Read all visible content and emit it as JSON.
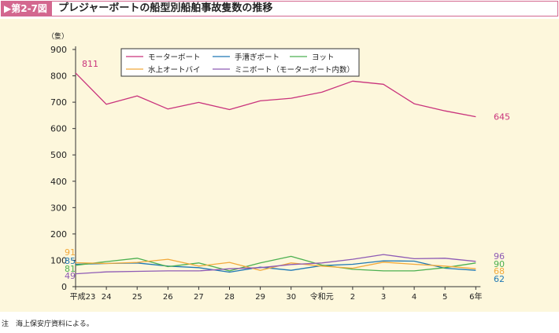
{
  "header": {
    "figure_label": "▶第2-7図",
    "title": "プレジャーボートの船型別船舶事故隻数の推移"
  },
  "note": "注　海上保安庁資料による。",
  "chart_data": {
    "type": "line",
    "title": "プレジャーボートの船型別船舶事故隻数の推移",
    "ylabel": "（隻）",
    "xlabel": "",
    "ylim": [
      0,
      900
    ],
    "yticks": [
      0,
      100,
      200,
      300,
      400,
      500,
      600,
      700,
      800,
      900
    ],
    "grid": false,
    "legend_position": "top-left",
    "categories": [
      "平成23",
      "24",
      "25",
      "26",
      "27",
      "28",
      "29",
      "30",
      "令和元",
      "2",
      "3",
      "4",
      "5",
      "6年"
    ],
    "series": [
      {
        "name": "モーターボート",
        "color": "#c9337c",
        "values": [
          811,
          692,
          724,
          674,
          699,
          672,
          705,
          715,
          738,
          780,
          768,
          694,
          667,
          645
        ],
        "start_label": "811",
        "end_label": "645"
      },
      {
        "name": "手漕ぎボート",
        "color": "#1f78b4",
        "values": [
          85,
          88,
          90,
          78,
          72,
          55,
          74,
          62,
          80,
          85,
          98,
          97,
          70,
          62
        ],
        "start_label": "85",
        "end_label": "62"
      },
      {
        "name": "ヨット",
        "color": "#4cb050",
        "values": [
          81,
          95,
          108,
          76,
          90,
          60,
          90,
          115,
          82,
          66,
          60,
          60,
          72,
          90
        ],
        "start_label": "81",
        "end_label": "90"
      },
      {
        "name": "水上オートバイ",
        "color": "#f2a93b",
        "values": [
          91,
          88,
          92,
          104,
          78,
          92,
          62,
          90,
          78,
          70,
          93,
          85,
          78,
          68
        ],
        "start_label": "91",
        "end_label": "68"
      },
      {
        "name": "ミニボート（モーターボート内数）",
        "color": "#8e5bb5",
        "values": [
          49,
          56,
          58,
          60,
          60,
          68,
          72,
          84,
          90,
          104,
          122,
          106,
          108,
          96
        ],
        "start_label": "49",
        "end_label": "96"
      }
    ]
  }
}
